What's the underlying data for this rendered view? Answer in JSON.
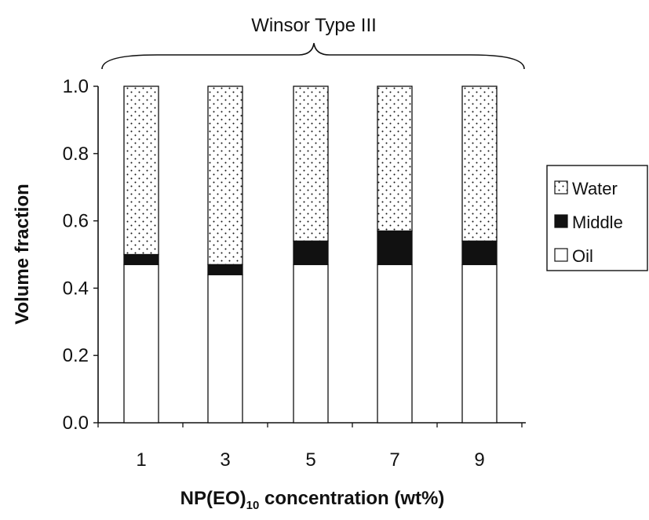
{
  "chart_data": {
    "type": "bar",
    "stacked": true,
    "categories": [
      "1",
      "3",
      "5",
      "7",
      "9"
    ],
    "series": [
      {
        "name": "Oil",
        "values": [
          0.47,
          0.44,
          0.47,
          0.47,
          0.47
        ],
        "pattern": "white"
      },
      {
        "name": "Middle",
        "values": [
          0.03,
          0.03,
          0.07,
          0.1,
          0.07
        ],
        "pattern": "solid-black"
      },
      {
        "name": "Water",
        "values": [
          0.5,
          0.53,
          0.46,
          0.43,
          0.46
        ],
        "pattern": "dotted"
      }
    ],
    "legend_order": [
      "Water",
      "Middle",
      "Oil"
    ],
    "legend_position": "right",
    "ylabel": "Volume fraction",
    "xlabel": {
      "prefix": "NP(EO)",
      "subscript": "10",
      "suffix": " concentration (wt%)"
    },
    "ylim": [
      0,
      1.0
    ],
    "yticks": [
      "0.0",
      "0.2",
      "0.4",
      "0.6",
      "0.8",
      "1.0"
    ],
    "bracket_label": "Winsor Type III",
    "grid": false,
    "colors": {
      "bar_outline": "#111111",
      "middle": "#111111",
      "oil": "#ffffff",
      "water_dot": "#111111"
    }
  }
}
